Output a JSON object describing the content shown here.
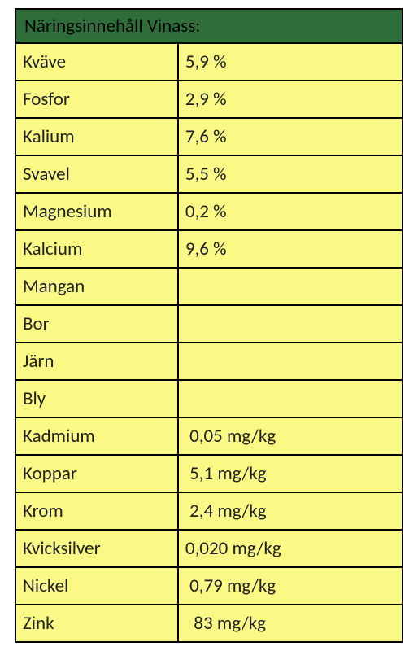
{
  "table": {
    "title": "Näringsinnehåll Vinass:",
    "header_bg": "#2f6e3b",
    "header_color": "#000000",
    "header_fontsize": 23,
    "cell_bg": "#faf986",
    "cell_color": "#212121",
    "cell_fontsize": 23,
    "border_color": "#000000",
    "rows": [
      {
        "label": "Kväve",
        "value": "5,9 %"
      },
      {
        "label": "Fosfor",
        "value": "2,9 %"
      },
      {
        "label": "Kalium",
        "value": "7,6 %"
      },
      {
        "label": "Svavel",
        "value": "5,5 %"
      },
      {
        "label": "Magnesium",
        "value": "0,2 %"
      },
      {
        "label": "Kalcium",
        "value": "9,6 %"
      },
      {
        "label": "Mangan",
        "value": ""
      },
      {
        "label": "Bor",
        "value": ""
      },
      {
        "label": "Järn",
        "value": ""
      },
      {
        "label": "Bly",
        "value": ""
      },
      {
        "label": "Kadmium",
        "value": " 0,05 mg/kg"
      },
      {
        "label": "Koppar",
        "value": " 5,1 mg/kg"
      },
      {
        "label": "Krom",
        "value": " 2,4 mg/kg"
      },
      {
        "label": "Kvicksilver",
        "value": "0,020 mg/kg"
      },
      {
        "label": "Nickel",
        "value": " 0,79 mg/kg"
      },
      {
        "label": "Zink",
        "value": "  83 mg/kg"
      }
    ]
  }
}
